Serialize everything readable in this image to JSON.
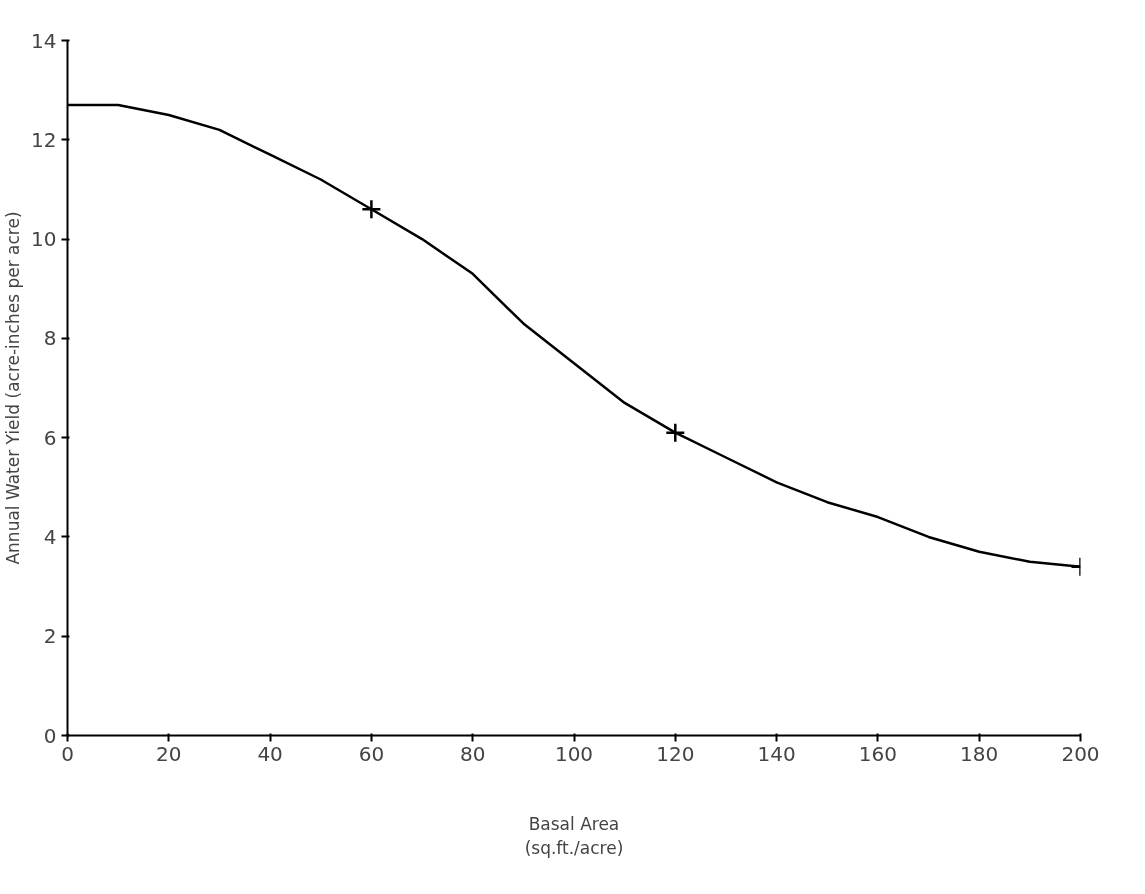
{
  "chart_data": {
    "type": "line",
    "xlabel": "Basal Area\n(sq.ft./acre)",
    "ylabel": "Annual Water Yield (acre-inches per acre)",
    "xlim": [
      0,
      200
    ],
    "ylim": [
      0,
      14
    ],
    "xticks": [
      0,
      20,
      40,
      60,
      80,
      100,
      120,
      140,
      160,
      180,
      200
    ],
    "yticks": [
      0,
      2,
      4,
      6,
      8,
      10,
      12,
      14
    ],
    "grid": false,
    "series": [
      {
        "color": "#000000",
        "marker": "none",
        "line_style": "solid",
        "x": [
          0,
          10,
          20,
          30,
          40,
          50,
          60,
          70,
          80,
          90,
          100,
          110,
          120,
          130,
          140,
          150,
          160,
          170,
          180,
          190,
          200
        ],
        "values": [
          12.7,
          12.7,
          12.5,
          12.2,
          11.7,
          11.2,
          10.6,
          10.0,
          9.3,
          8.3,
          7.5,
          6.7,
          6.1,
          5.6,
          5.1,
          4.7,
          4.4,
          4.0,
          3.7,
          3.5,
          3.4
        ]
      },
      {
        "type": "scatter",
        "color": "#000000",
        "marker": "cross",
        "x": [
          60,
          120,
          200
        ],
        "values": [
          10.6,
          6.1,
          3.4
        ]
      }
    ]
  }
}
